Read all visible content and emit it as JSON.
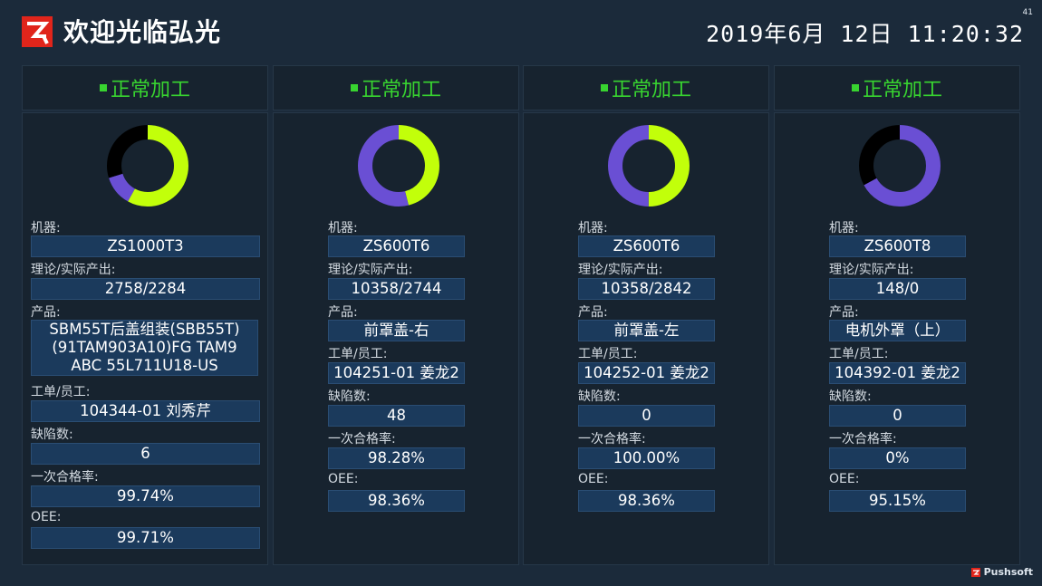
{
  "header": {
    "title": "欢迎光临弘光",
    "datetime": "2019年6月 12日 11:20:32",
    "page_num": "41"
  },
  "colors": {
    "accent_green": "#38d430",
    "donut_lime": "#c2ff0a",
    "donut_purple": "#6a4fd4",
    "donut_black": "#000000"
  },
  "labels": {
    "machine": "机器:",
    "output": "理论/实际产出:",
    "product": "产品:",
    "order": "工单/员工:",
    "defects": "缺陷数:",
    "pass_rate": "一次合格率:",
    "oee": "OEE:"
  },
  "cards": [
    {
      "status": "正常加工",
      "machine": "ZS1000T3",
      "output": "2758/2284",
      "product": "SBM55T后盖组装(SBB55T)(91TAM903A10)FG TAM9 ABC 55L711U18-US",
      "order": "104344-01 刘秀芹",
      "defects": "6",
      "pass_rate": "99.74%",
      "oee": "99.71%",
      "donut": [
        {
          "color": "lime",
          "fraction": 0.58
        },
        {
          "color": "purple",
          "fraction": 0.12
        },
        {
          "color": "black",
          "fraction": 0.3
        }
      ]
    },
    {
      "status": "正常加工",
      "machine": "ZS600T6",
      "output": "10358/2744",
      "product": "前罩盖-右",
      "order": "104251-01 姜龙2",
      "defects": "48",
      "pass_rate": "98.28%",
      "oee": "98.36%",
      "donut": [
        {
          "color": "lime",
          "fraction": 0.46
        },
        {
          "color": "purple",
          "fraction": 0.54
        }
      ]
    },
    {
      "status": "正常加工",
      "machine": "ZS600T6",
      "output": "10358/2842",
      "product": "前罩盖-左",
      "order": "104252-01 姜龙2",
      "defects": "0",
      "pass_rate": "100.00%",
      "oee": "98.36%",
      "donut": [
        {
          "color": "lime",
          "fraction": 0.5
        },
        {
          "color": "purple",
          "fraction": 0.5
        }
      ]
    },
    {
      "status": "正常加工",
      "machine": "ZS600T8",
      "output": "148/0",
      "product": "电机外罩（上）",
      "order": "104392-01 姜龙2",
      "defects": "0",
      "pass_rate": "0%",
      "oee": "95.15%",
      "donut": [
        {
          "color": "purple",
          "fraction": 0.67
        },
        {
          "color": "black",
          "fraction": 0.33
        }
      ]
    }
  ],
  "footer": {
    "brand": "Pushsoft",
    "brand_icon": "pushsoft-logo-icon"
  }
}
